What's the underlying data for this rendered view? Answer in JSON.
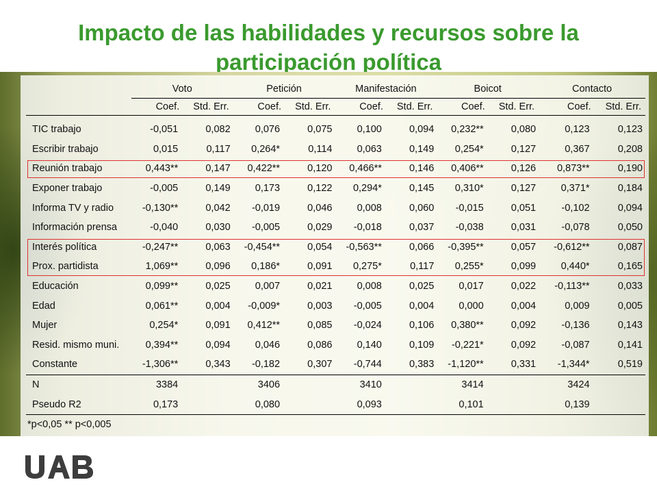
{
  "title": {
    "line1": "Impacto de las habilidades y recursos sobre la",
    "line2": "participación política"
  },
  "table": {
    "groups": [
      "Voto",
      "Petición",
      "Manifestación",
      "Boicot",
      "Contacto"
    ],
    "subheaders": [
      "Coef.",
      "Std. Err.",
      "Coef.",
      "Std. Err.",
      "Coef.",
      "Std. Err.",
      "Coef.",
      "Std. Err.",
      "Coef.",
      "Std. Err."
    ],
    "rows": [
      {
        "label": "TIC trabajo",
        "values": [
          "-0,051",
          "0,082",
          "0,076",
          "0,075",
          "0,100",
          "0,094",
          "0,232**",
          "0,080",
          "0,123",
          "0,123"
        ]
      },
      {
        "label": "Escribir trabajo",
        "values": [
          "0,015",
          "0,117",
          "0,264*",
          "0,114",
          "0,063",
          "0,149",
          "0,254*",
          "0,127",
          "0,367",
          "0,208"
        ]
      },
      {
        "label": "Reunión trabajo",
        "values": [
          "0,443**",
          "0,147",
          "0,422**",
          "0,120",
          "0,466**",
          "0,146",
          "0,406**",
          "0,126",
          "0,873**",
          "0,190"
        ]
      },
      {
        "label": "Exponer trabajo",
        "values": [
          "-0,005",
          "0,149",
          "0,173",
          "0,122",
          "0,294*",
          "0,145",
          "0,310*",
          "0,127",
          "0,371*",
          "0,184"
        ]
      },
      {
        "label": "Informa TV y radio",
        "values": [
          "-0,130**",
          "0,042",
          "-0,019",
          "0,046",
          "0,008",
          "0,060",
          "-0,015",
          "0,051",
          "-0,102",
          "0,094"
        ]
      },
      {
        "label": "Información prensa",
        "values": [
          "-0,040",
          "0,030",
          "-0,005",
          "0,029",
          "-0,018",
          "0,037",
          "-0,038",
          "0,031",
          "-0,078",
          "0,050"
        ]
      },
      {
        "label": "Interés política",
        "values": [
          "-0,247**",
          "0,063",
          "-0,454**",
          "0,054",
          "-0,563**",
          "0,066",
          "-0,395**",
          "0,057",
          "-0,612**",
          "0,087"
        ]
      },
      {
        "label": "Prox. partidista",
        "values": [
          "1,069**",
          "0,096",
          "0,186*",
          "0,091",
          "0,275*",
          "0,117",
          "0,255*",
          "0,099",
          "0,440*",
          "0,165"
        ]
      },
      {
        "label": "Educación",
        "values": [
          "0,099**",
          "0,025",
          "0,007",
          "0,021",
          "0,008",
          "0,025",
          "0,017",
          "0,022",
          "-0,113**",
          "0,033"
        ]
      },
      {
        "label": "Edad",
        "values": [
          "0,061**",
          "0,004",
          "-0,009*",
          "0,003",
          "-0,005",
          "0,004",
          "0,000",
          "0,004",
          "0,009",
          "0,005"
        ]
      },
      {
        "label": "Mujer",
        "values": [
          "0,254*",
          "0,091",
          "0,412**",
          "0,085",
          "-0,024",
          "0,106",
          "0,380**",
          "0,092",
          "-0,136",
          "0,143"
        ]
      },
      {
        "label": "Resid. mismo muni.",
        "values": [
          "0,394**",
          "0,094",
          "0,046",
          "0,086",
          "0,140",
          "0,109",
          "-0,221*",
          "0,092",
          "-0,087",
          "0,141"
        ]
      },
      {
        "label": "Constante",
        "values": [
          "-1,306**",
          "0,343",
          "-0,182",
          "0,307",
          "-0,744",
          "0,383",
          "-1,120**",
          "0,331",
          "-1,344*",
          "0,519"
        ]
      }
    ],
    "stats": [
      {
        "label": "N",
        "values": [
          "3384",
          "",
          "3406",
          "",
          "3410",
          "",
          "3414",
          "",
          "3424",
          ""
        ]
      },
      {
        "label": "Pseudo R2",
        "values": [
          "0,173",
          "",
          "0,080",
          "",
          "0,093",
          "",
          "0,101",
          "",
          "0,139",
          ""
        ]
      }
    ],
    "highlighted_rows": [
      "Reunión trabajo",
      "Interés política",
      "Prox. partidista"
    ],
    "highlight_color": "#e03030"
  },
  "footnote": "*p<0,05 ** p<0,005",
  "logo": {
    "text": "UAB"
  },
  "colors": {
    "title": "#3a9a2e",
    "logo": "#3d3d3d"
  }
}
